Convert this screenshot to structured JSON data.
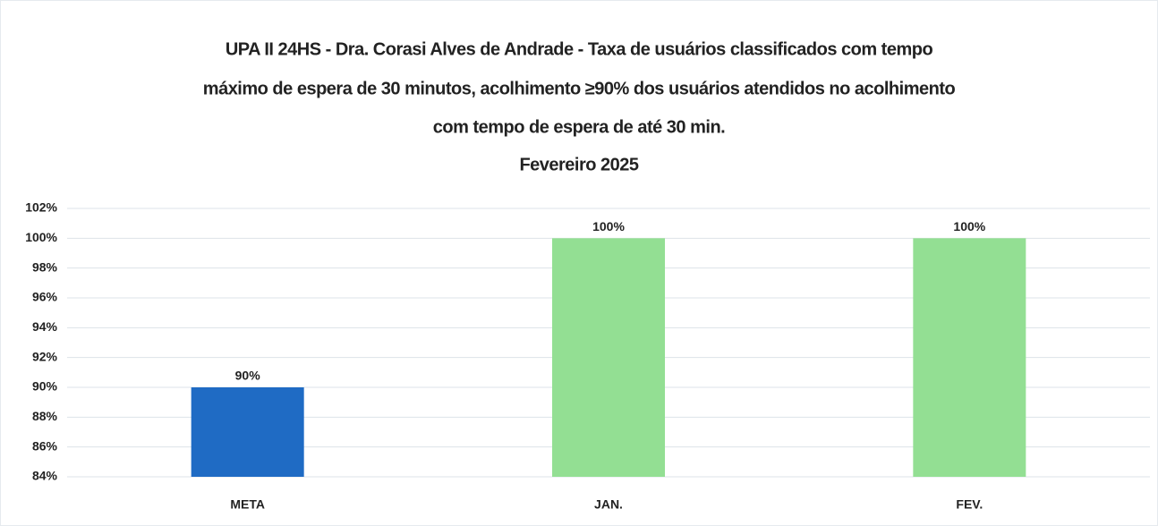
{
  "chart_data": {
    "type": "bar",
    "title": [
      "UPA II 24HS - Dra. Corasi Alves de Andrade - Taxa de usuários classificados com tempo",
      "máximo de espera de 30 minutos, acolhimento ≥90% dos usuários atendidos no acolhimento",
      "com tempo de espera de até 30 min."
    ],
    "subtitle": "Fevereiro 2025",
    "categories": [
      "META",
      "JAN.",
      "FEV."
    ],
    "values": [
      90,
      100,
      100
    ],
    "value_labels": [
      "90%",
      "100%",
      "100%"
    ],
    "colors": [
      "#1f6bc4",
      "#93df93",
      "#93df93"
    ],
    "ylim": [
      84,
      102
    ],
    "yticks": [
      {
        "value": 84,
        "label": "84%"
      },
      {
        "value": 86,
        "label": "86%"
      },
      {
        "value": 88,
        "label": "88%"
      },
      {
        "value": 90,
        "label": "90%"
      },
      {
        "value": 92,
        "label": "92%"
      },
      {
        "value": 94,
        "label": "94%"
      },
      {
        "value": 96,
        "label": "96%"
      },
      {
        "value": 98,
        "label": "98%"
      },
      {
        "value": 100,
        "label": "100%"
      },
      {
        "value": 102,
        "label": "102%"
      }
    ],
    "grid": true
  }
}
